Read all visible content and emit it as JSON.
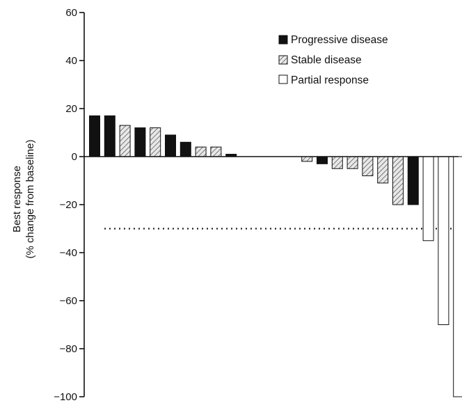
{
  "chart_data": {
    "type": "bar",
    "title": "",
    "ylabel_lines": [
      "Best response",
      "(% change from baseline)"
    ],
    "ylim": [
      -100,
      60
    ],
    "yticks": [
      60,
      40,
      20,
      0,
      -20,
      -40,
      -60,
      -80,
      -100
    ],
    "ytick_labels": [
      "60",
      "40",
      "20",
      "0",
      "−20",
      "−40",
      "−60",
      "−80",
      "−100"
    ],
    "reference_line": {
      "value": -30,
      "style": "dotted"
    },
    "legend": {
      "position": "top-right",
      "entries": [
        {
          "key": "progressive",
          "label": "Progressive disease"
        },
        {
          "key": "stable",
          "label": "Stable disease"
        },
        {
          "key": "partial",
          "label": "Partial response"
        }
      ]
    },
    "bars": [
      {
        "value": 17,
        "category": "progressive"
      },
      {
        "value": 17,
        "category": "progressive"
      },
      {
        "value": 13,
        "category": "stable"
      },
      {
        "value": 12,
        "category": "progressive"
      },
      {
        "value": 12,
        "category": "stable"
      },
      {
        "value": 9,
        "category": "progressive"
      },
      {
        "value": 6,
        "category": "progressive"
      },
      {
        "value": 4,
        "category": "stable"
      },
      {
        "value": 4,
        "category": "stable"
      },
      {
        "value": 1,
        "category": "progressive"
      },
      {
        "value": 0,
        "category": "none"
      },
      {
        "value": 0,
        "category": "none"
      },
      {
        "value": 0,
        "category": "none"
      },
      {
        "value": 0,
        "category": "none"
      },
      {
        "value": -2,
        "category": "stable"
      },
      {
        "value": -3,
        "category": "progressive"
      },
      {
        "value": -5,
        "category": "stable"
      },
      {
        "value": -5,
        "category": "stable"
      },
      {
        "value": -8,
        "category": "stable"
      },
      {
        "value": -11,
        "category": "stable"
      },
      {
        "value": -20,
        "category": "stable"
      },
      {
        "value": -20,
        "category": "progressive"
      },
      {
        "value": -35,
        "category": "partial"
      },
      {
        "value": -70,
        "category": "partial"
      },
      {
        "value": -100,
        "category": "partial"
      }
    ]
  }
}
